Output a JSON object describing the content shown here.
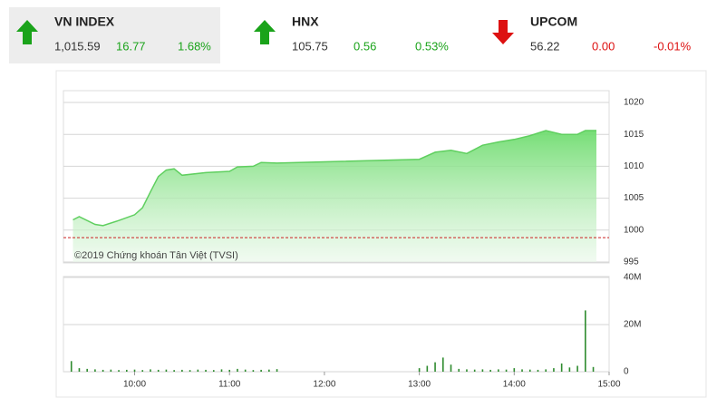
{
  "tickers": [
    {
      "name": "VN INDEX",
      "value": "1,015.59",
      "change": "16.77",
      "percent": "1.68%",
      "direction": "up",
      "color": "#1aa31a",
      "selected": true
    },
    {
      "name": "HNX",
      "value": "105.75",
      "change": "0.56",
      "percent": "0.53%",
      "direction": "up",
      "color": "#1aa31a",
      "selected": false
    },
    {
      "name": "UPCOM",
      "value": "56.22",
      "change": "0.00",
      "percent": "-0.01%",
      "direction": "down",
      "color": "#dd1111",
      "selected": false
    }
  ],
  "chart_data": [
    {
      "type": "area",
      "color": "#5fcf5f",
      "x": [
        561,
        565,
        575,
        580,
        590,
        600,
        605,
        610,
        615,
        620,
        625,
        630,
        645,
        660,
        665,
        675,
        680,
        690,
        780,
        790,
        800,
        810,
        820,
        830,
        840,
        850,
        860,
        870,
        880,
        885,
        890,
        892
      ],
      "values": [
        1001.6,
        1002.1,
        1000.9,
        1000.7,
        1001.5,
        1002.4,
        1003.5,
        1006.0,
        1008.4,
        1009.4,
        1009.6,
        1008.6,
        1009.0,
        1009.2,
        1009.9,
        1010.0,
        1010.6,
        1010.5,
        1011.1,
        1012.2,
        1012.5,
        1012.0,
        1013.3,
        1013.8,
        1014.2,
        1014.8,
        1015.6,
        1015.0,
        1015.0,
        1015.6,
        1015.6,
        1015.6
      ],
      "xlim": [
        555,
        900
      ],
      "ylim": [
        995,
        1020
      ],
      "yticks": [
        995,
        1000,
        1005,
        1010,
        1015,
        1020
      ],
      "grid": true,
      "reference": 998.82,
      "reference_color": "#cc2222",
      "annotation": "©2019 Chứng khoán Tân Việt (TVSI)"
    },
    {
      "type": "bar",
      "color": "#2e8b2e",
      "x": [
        560,
        565,
        570,
        575,
        580,
        585,
        590,
        595,
        600,
        605,
        610,
        615,
        620,
        625,
        630,
        635,
        640,
        645,
        650,
        655,
        660,
        665,
        670,
        675,
        680,
        685,
        690,
        780,
        785,
        790,
        795,
        800,
        805,
        810,
        815,
        820,
        825,
        830,
        835,
        840,
        845,
        850,
        855,
        860,
        865,
        870,
        875,
        880,
        885,
        890
      ],
      "values": [
        4500000,
        1500000,
        1200000,
        1000000,
        800000,
        900000,
        700000,
        800000,
        900000,
        700000,
        1000000,
        800000,
        900000,
        700000,
        800000,
        700000,
        900000,
        800000,
        700000,
        1000000,
        800000,
        1200000,
        900000,
        700000,
        800000,
        900000,
        1100000,
        1500000,
        2500000,
        4000000,
        6000000,
        3000000,
        1200000,
        1000000,
        900000,
        1000000,
        800000,
        1000000,
        900000,
        1500000,
        1000000,
        900000,
        800000,
        1000000,
        1500000,
        3500000,
        1800000,
        2500000,
        26000000,
        2000000
      ],
      "xlim": [
        555,
        900
      ],
      "ylim": [
        0,
        40000000
      ],
      "yticks": [
        0,
        {
          "value": 20000000,
          "label": "20M"
        },
        {
          "value": 40000000,
          "label": "40M"
        }
      ],
      "grid": true,
      "xticks": [
        {
          "value": 600,
          "label": "10:00"
        },
        {
          "value": 660,
          "label": "11:00"
        },
        {
          "value": 720,
          "label": "12:00"
        },
        {
          "value": 780,
          "label": "13:00"
        },
        {
          "value": 840,
          "label": "14:00"
        },
        {
          "value": 900,
          "label": "15:00"
        }
      ]
    }
  ]
}
